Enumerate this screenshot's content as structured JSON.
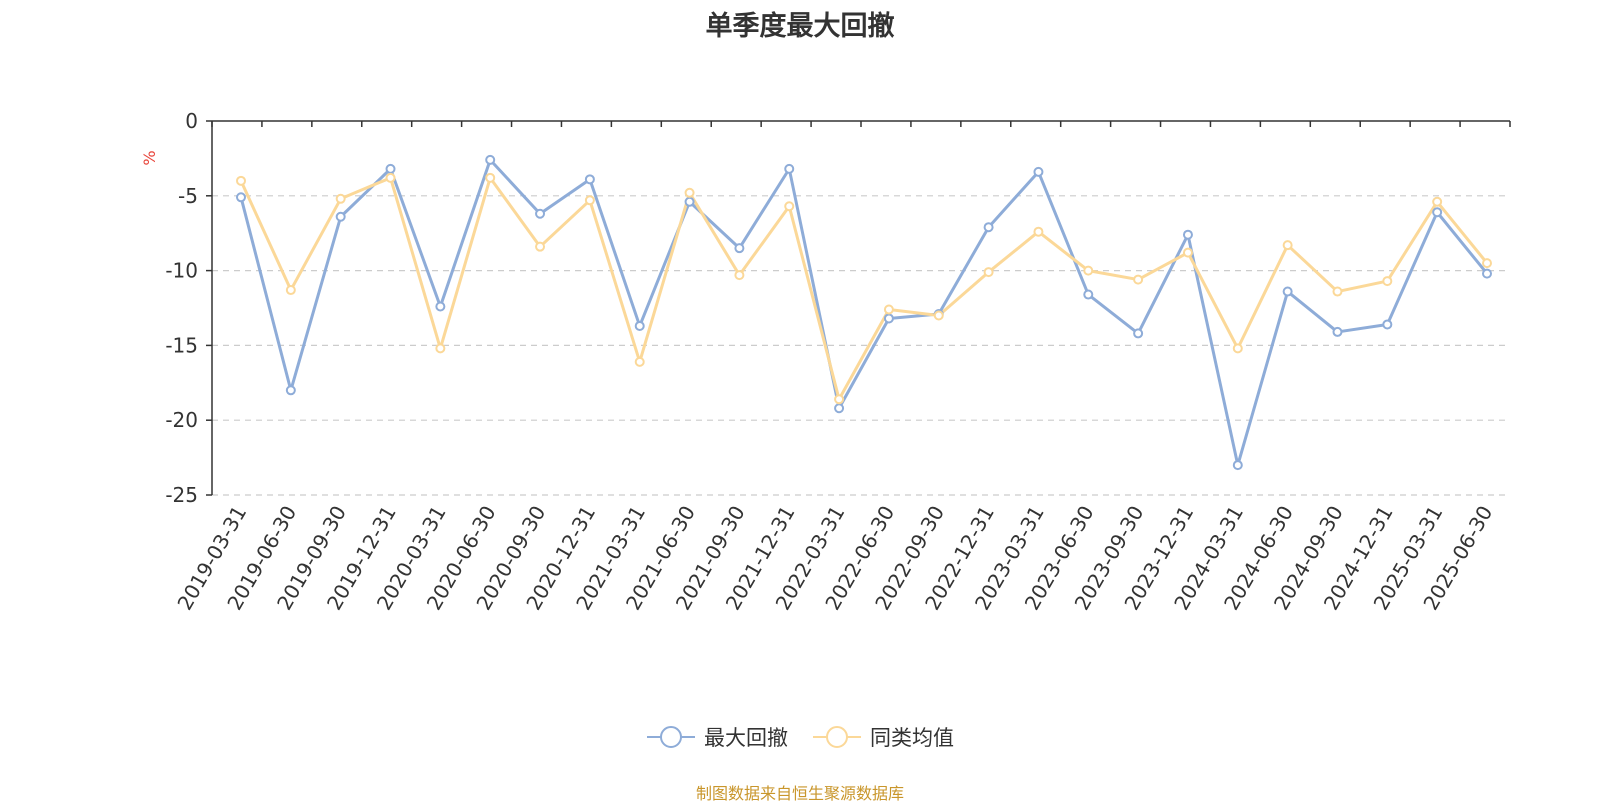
{
  "chart_data": {
    "type": "line",
    "title": "单季度最大回撤",
    "ylabel": "%",
    "xlabel": "",
    "ylim": [
      -25,
      0
    ],
    "yticks": [
      0,
      -5,
      -10,
      -15,
      -20,
      -25
    ],
    "ytick_labels": [
      "0",
      "-5",
      "-10",
      "-15",
      "-20",
      "-25"
    ],
    "grid": "horizontal dashed",
    "legend_position": "bottom-center",
    "categories": [
      "2019-03-31",
      "2019-06-30",
      "2019-09-30",
      "2019-12-31",
      "2020-03-31",
      "2020-06-30",
      "2020-09-30",
      "2020-12-31",
      "2021-03-31",
      "2021-06-30",
      "2021-09-30",
      "2021-12-31",
      "2022-03-31",
      "2022-06-30",
      "2022-09-30",
      "2022-12-31",
      "2023-03-31",
      "2023-06-30",
      "2023-09-30",
      "2023-12-31",
      "2024-03-31",
      "2024-06-30",
      "2024-09-30",
      "2024-12-31",
      "2025-03-31",
      "2025-06-30"
    ],
    "series": [
      {
        "name": "最大回撤",
        "color": "#8eacd8",
        "values": [
          -5.1,
          -18.0,
          -6.4,
          -3.2,
          -12.4,
          -2.6,
          -6.2,
          -3.9,
          -13.7,
          -5.4,
          -8.5,
          -3.2,
          -19.2,
          -13.2,
          -12.9,
          -7.1,
          -3.4,
          -11.6,
          -14.2,
          -7.6,
          -23.0,
          -11.4,
          -14.1,
          -13.6,
          -6.1,
          -10.2
        ]
      },
      {
        "name": "同类均值",
        "color": "#fbd898",
        "values": [
          -4.0,
          -11.3,
          -5.2,
          -3.8,
          -15.2,
          -3.8,
          -8.4,
          -5.3,
          -16.1,
          -4.8,
          -10.3,
          -5.7,
          -18.6,
          -12.6,
          -13.0,
          -10.1,
          -7.4,
          -10.0,
          -10.6,
          -8.8,
          -15.2,
          -8.3,
          -11.4,
          -10.7,
          -5.4,
          -9.5
        ]
      }
    ]
  },
  "source_note": "制图数据来自恒生聚源数据库"
}
